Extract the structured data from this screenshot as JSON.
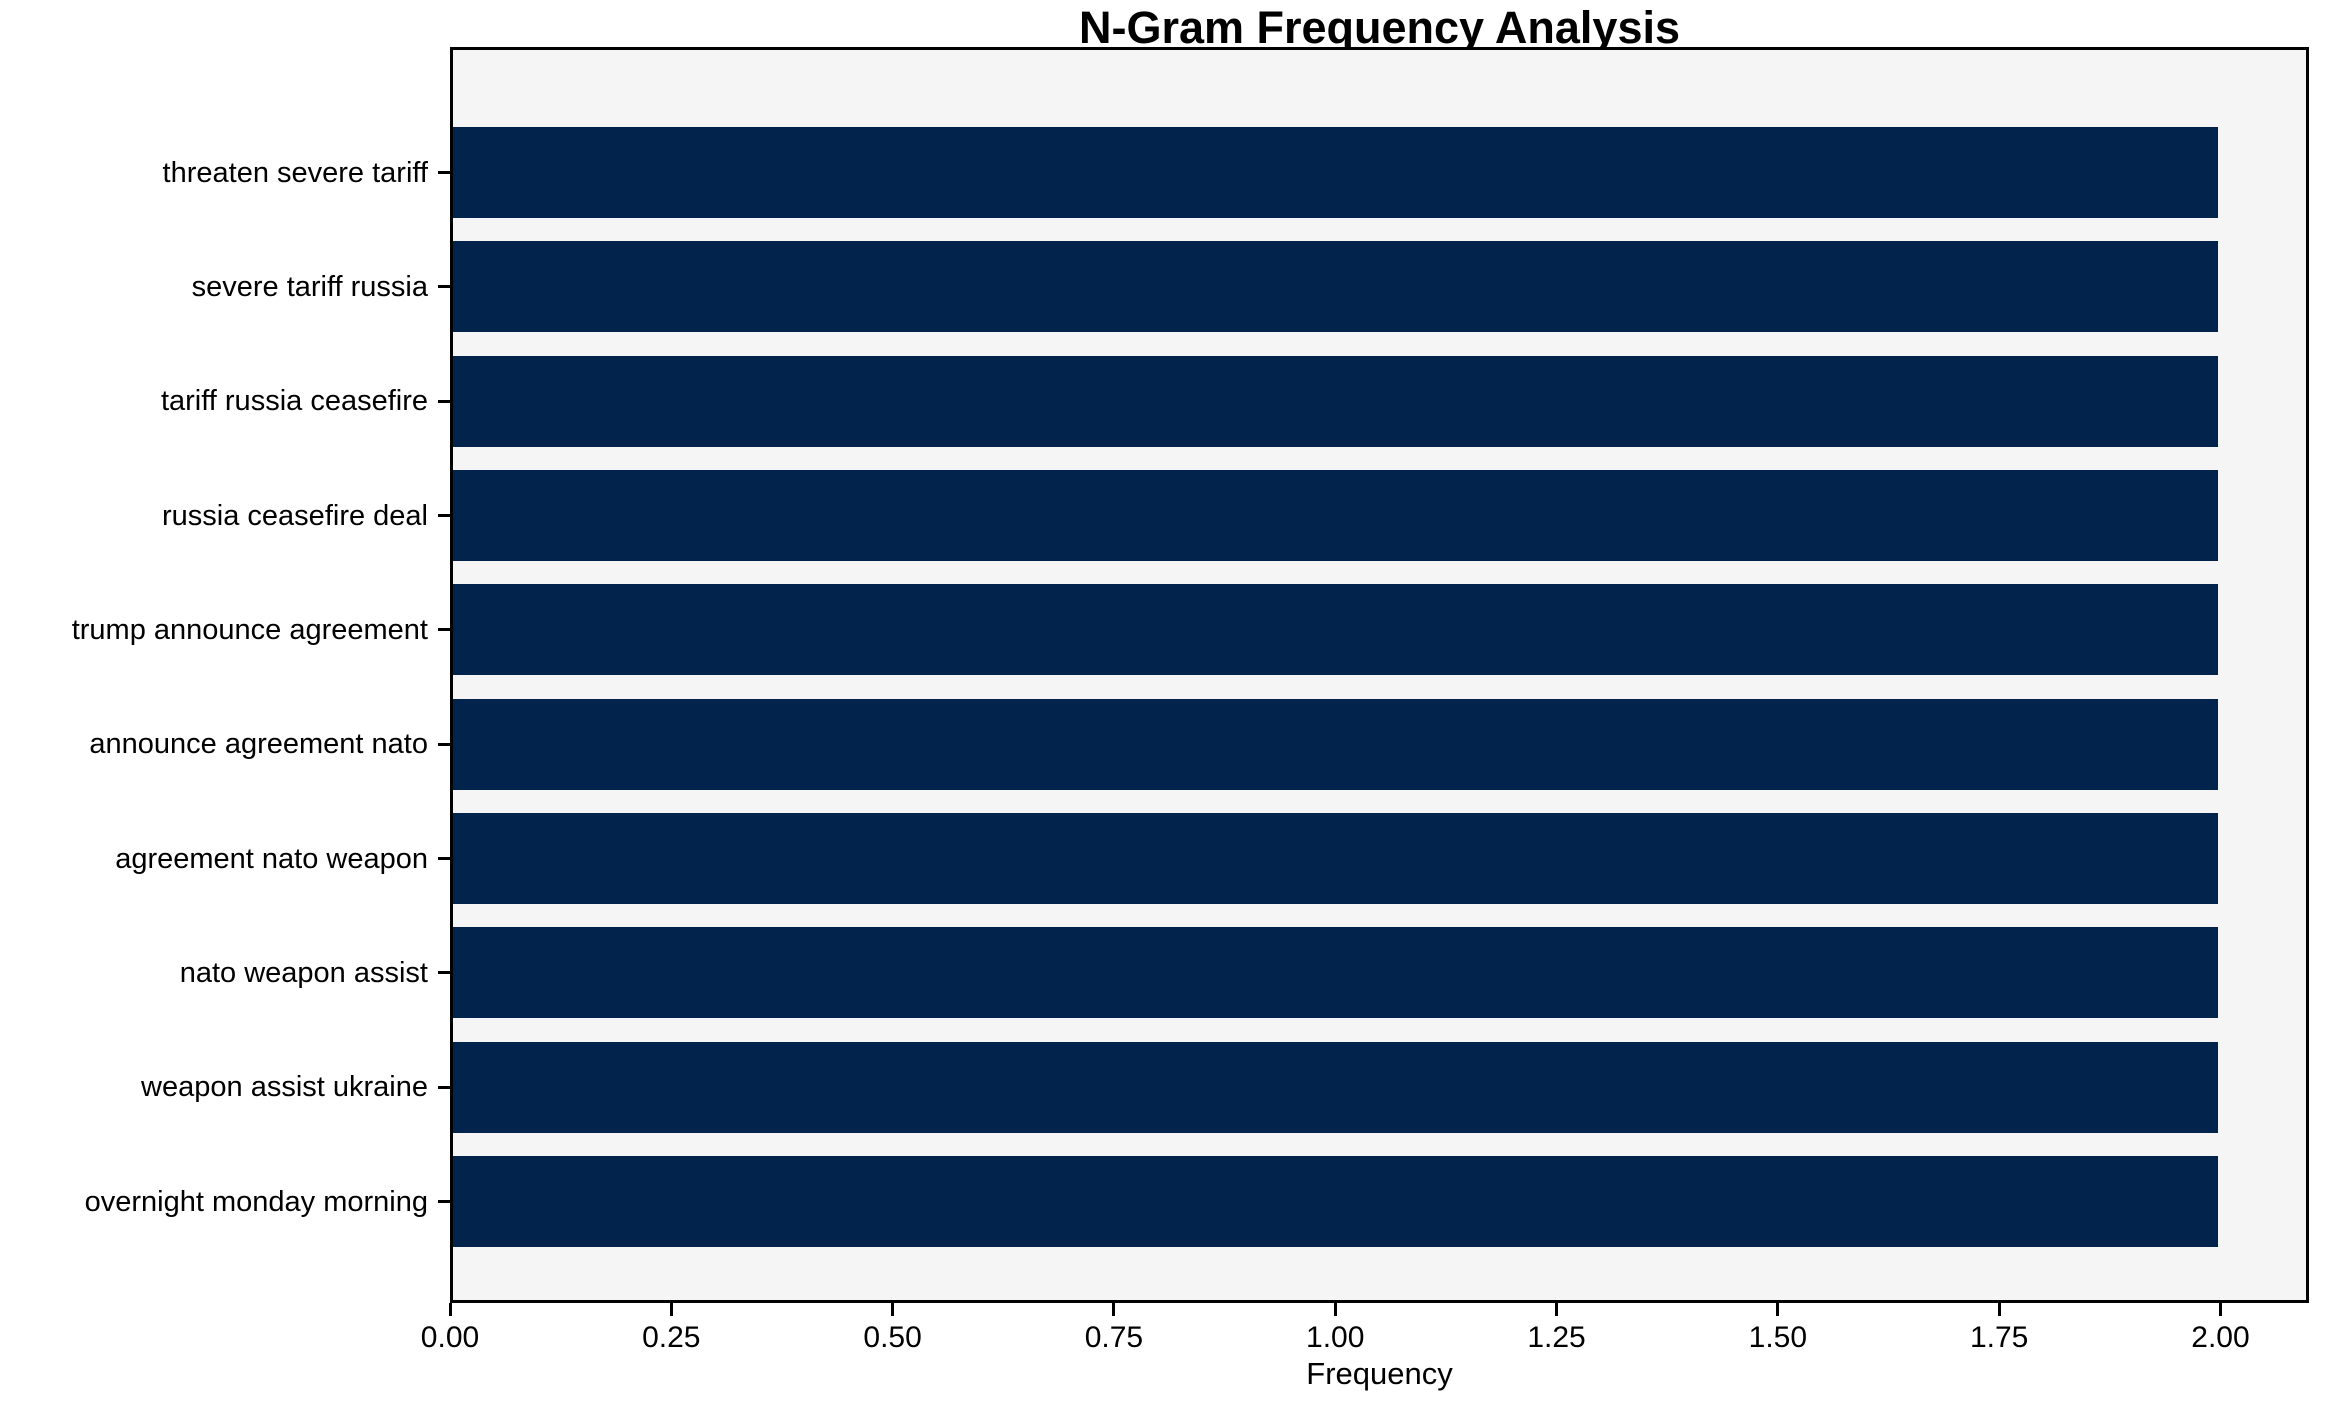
{
  "chart_data": {
    "type": "bar",
    "orientation": "horizontal",
    "title": "N-Gram Frequency Analysis",
    "xlabel": "Frequency",
    "ylabel": "",
    "categories": [
      "threaten severe tariff",
      "severe tariff russia",
      "tariff russia ceasefire",
      "russia ceasefire deal",
      "trump announce agreement",
      "announce agreement nato",
      "agreement nato weapon",
      "nato weapon assist",
      "weapon assist ukraine",
      "overnight monday morning"
    ],
    "values": [
      2,
      2,
      2,
      2,
      2,
      2,
      2,
      2,
      2,
      2
    ],
    "xlim": [
      0,
      2.1
    ],
    "xticks": [
      0.0,
      0.25,
      0.5,
      0.75,
      1.0,
      1.25,
      1.5,
      1.75,
      2.0
    ],
    "xtick_labels": [
      "0.00",
      "0.25",
      "0.50",
      "0.75",
      "1.00",
      "1.25",
      "1.50",
      "1.75",
      "2.00"
    ],
    "grid": false,
    "legend": "none",
    "colors": {
      "bar": "#02234c",
      "plot_background": "#f5f5f5",
      "figure_background": "#ffffff",
      "spine": "#000000",
      "text": "#000000"
    }
  }
}
